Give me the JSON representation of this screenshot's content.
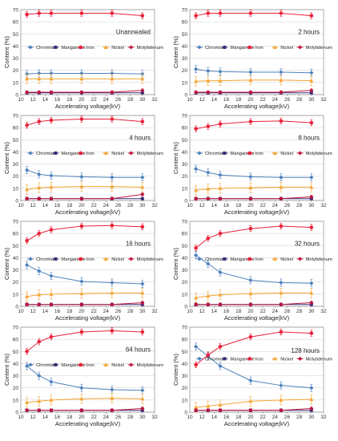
{
  "legend_labels": [
    "Chromium",
    "Manganese",
    "Iron",
    "Nickel",
    "Molybdenum"
  ],
  "series_colors": {
    "Chromium": "#4f81bd",
    "Manganese": "#3a2d7a",
    "Iron": "#e8213a",
    "Nickel": "#f4a533",
    "Molybdenum": "#c0143c"
  },
  "chart_data": [
    {
      "type": "line",
      "panel_label": "Unannealed",
      "xlabel": "Accelerating voltage(kV)",
      "ylabel": "Content (%)",
      "xlim": [
        10,
        32
      ],
      "ylim": [
        0,
        70
      ],
      "xticks": [
        10,
        12,
        14,
        16,
        18,
        20,
        22,
        24,
        26,
        28,
        30,
        32
      ],
      "yticks": [
        0,
        10,
        20,
        30,
        40,
        50,
        60,
        70
      ],
      "x": [
        11,
        13,
        15,
        20,
        25,
        30
      ],
      "series": [
        {
          "name": "Chromium",
          "values": [
            17,
            17.5,
            17.5,
            17.5,
            17.5,
            17
          ]
        },
        {
          "name": "Manganese",
          "values": [
            1.5,
            1.5,
            1.5,
            1.5,
            1.5,
            1.5
          ]
        },
        {
          "name": "Iron",
          "values": [
            66,
            67,
            67,
            67,
            67,
            65
          ]
        },
        {
          "name": "Nickel",
          "values": [
            13,
            13,
            13,
            13,
            13,
            13
          ]
        },
        {
          "name": "Molybdenum",
          "values": [
            2,
            2,
            2,
            2,
            2,
            3.5
          ]
        }
      ]
    },
    {
      "type": "line",
      "panel_label": "2 hours",
      "xlabel": "Accelerating voltage(kV)",
      "ylabel": "Content (%)",
      "xlim": [
        10,
        32
      ],
      "ylim": [
        0,
        70
      ],
      "xticks": [
        10,
        12,
        14,
        16,
        18,
        20,
        22,
        24,
        26,
        28,
        30,
        32
      ],
      "yticks": [
        0,
        10,
        20,
        30,
        40,
        50,
        60,
        70
      ],
      "x": [
        11,
        13,
        15,
        20,
        25,
        30
      ],
      "series": [
        {
          "name": "Chromium",
          "values": [
            21,
            19.5,
            19,
            18.5,
            18.5,
            18
          ]
        },
        {
          "name": "Manganese",
          "values": [
            1.5,
            1.5,
            1.5,
            1.5,
            1.5,
            1.5
          ]
        },
        {
          "name": "Iron",
          "values": [
            65,
            67,
            67,
            67,
            67,
            65
          ]
        },
        {
          "name": "Nickel",
          "values": [
            11,
            11.5,
            11.5,
            12,
            12,
            11.5
          ]
        },
        {
          "name": "Molybdenum",
          "values": [
            2,
            2,
            2,
            2,
            2,
            3.5
          ]
        }
      ]
    },
    {
      "type": "line",
      "panel_label": "4 hours",
      "xlabel": "Accelerating voltage(kV)",
      "ylabel": "Content (%)",
      "xlim": [
        10,
        32
      ],
      "ylim": [
        0,
        70
      ],
      "xticks": [
        10,
        12,
        14,
        16,
        18,
        20,
        22,
        24,
        26,
        28,
        30,
        32
      ],
      "yticks": [
        0,
        10,
        20,
        30,
        40,
        50,
        60,
        70
      ],
      "x": [
        11,
        13,
        15,
        20,
        25,
        30
      ],
      "series": [
        {
          "name": "Chromium",
          "values": [
            25,
            21.5,
            20.5,
            19.5,
            19,
            19
          ]
        },
        {
          "name": "Manganese",
          "values": [
            1.5,
            1.5,
            1.5,
            1.5,
            1.5,
            1.5
          ]
        },
        {
          "name": "Iron",
          "values": [
            62,
            65,
            66,
            67,
            67,
            65
          ]
        },
        {
          "name": "Nickel",
          "values": [
            9,
            10.5,
            11,
            11.5,
            11.5,
            11
          ]
        },
        {
          "name": "Molybdenum",
          "values": [
            1.5,
            1.5,
            1.5,
            1.5,
            1.5,
            5
          ]
        }
      ]
    },
    {
      "type": "line",
      "panel_label": "8 hours",
      "xlabel": "Accelerating voltage(kV)",
      "ylabel": "Content (%)",
      "xlim": [
        10,
        32
      ],
      "ylim": [
        0,
        70
      ],
      "xticks": [
        10,
        12,
        14,
        16,
        18,
        20,
        22,
        24,
        26,
        28,
        30,
        32
      ],
      "yticks": [
        0,
        10,
        20,
        30,
        40,
        50,
        60,
        70
      ],
      "x": [
        11,
        13,
        15,
        20,
        25,
        30
      ],
      "series": [
        {
          "name": "Chromium",
          "values": [
            26,
            23,
            21,
            19.5,
            19,
            19
          ]
        },
        {
          "name": "Manganese",
          "values": [
            1.5,
            1.5,
            1.5,
            1.5,
            1.5,
            1.5
          ]
        },
        {
          "name": "Iron",
          "values": [
            59,
            61,
            63,
            65,
            65.5,
            64
          ]
        },
        {
          "name": "Nickel",
          "values": [
            8.5,
            9.5,
            10,
            10.5,
            11,
            11
          ]
        },
        {
          "name": "Molybdenum",
          "values": [
            1.5,
            1.5,
            1.5,
            1.5,
            1.5,
            3
          ]
        }
      ]
    },
    {
      "type": "line",
      "panel_label": "16 hours",
      "xlabel": "Accelerating voltage(kV)",
      "ylabel": "Content (%)",
      "xlim": [
        10,
        32
      ],
      "ylim": [
        0,
        70
      ],
      "xticks": [
        10,
        12,
        14,
        16,
        18,
        20,
        22,
        24,
        26,
        28,
        30,
        32
      ],
      "yticks": [
        0,
        10,
        20,
        30,
        40,
        50,
        60,
        70
      ],
      "x": [
        11,
        13,
        15,
        20,
        25,
        30
      ],
      "series": [
        {
          "name": "Chromium",
          "values": [
            34,
            29,
            25,
            20.5,
            19.5,
            18.5
          ]
        },
        {
          "name": "Manganese",
          "values": [
            1.5,
            1.5,
            1.5,
            1.5,
            1.5,
            1.5
          ]
        },
        {
          "name": "Iron",
          "values": [
            54,
            60,
            63,
            66,
            66.5,
            65.5
          ]
        },
        {
          "name": "Nickel",
          "values": [
            8,
            9.5,
            10,
            10.5,
            11,
            11
          ]
        },
        {
          "name": "Molybdenum",
          "values": [
            1.5,
            1.5,
            1.5,
            1.5,
            1.5,
            3
          ]
        }
      ]
    },
    {
      "type": "line",
      "panel_label": "32 hours",
      "xlabel": "Accelerating voltage(kV)",
      "ylabel": "Content (%)",
      "xlim": [
        10,
        32
      ],
      "ylim": [
        0,
        70
      ],
      "xticks": [
        10,
        12,
        14,
        16,
        18,
        20,
        22,
        24,
        26,
        28,
        30,
        32
      ],
      "yticks": [
        0,
        10,
        20,
        30,
        40,
        50,
        60,
        70
      ],
      "x": [
        11,
        13,
        15,
        20,
        25,
        30
      ],
      "series": [
        {
          "name": "Chromium",
          "values": [
            42,
            35,
            28,
            21.5,
            19.5,
            19
          ]
        },
        {
          "name": "Manganese",
          "values": [
            1.5,
            1.5,
            1.5,
            1.5,
            1.5,
            1.5
          ]
        },
        {
          "name": "Iron",
          "values": [
            48,
            56,
            60,
            64,
            66,
            65
          ]
        },
        {
          "name": "Nickel",
          "values": [
            7,
            8.5,
            9.5,
            10.5,
            11,
            11
          ]
        },
        {
          "name": "Molybdenum",
          "values": [
            1.5,
            1.5,
            1.5,
            1.5,
            1.5,
            3
          ]
        }
      ]
    },
    {
      "type": "line",
      "panel_label": "64 hours",
      "xlabel": "Accelerating voltage(kV)",
      "ylabel": "Content (%)",
      "xlim": [
        10,
        32
      ],
      "ylim": [
        0,
        70
      ],
      "xticks": [
        10,
        12,
        14,
        16,
        18,
        20,
        22,
        24,
        26,
        28,
        30,
        32
      ],
      "yticks": [
        0,
        10,
        20,
        30,
        40,
        50,
        60,
        70
      ],
      "x": [
        11,
        13,
        15,
        20,
        25,
        30
      ],
      "series": [
        {
          "name": "Chromium",
          "values": [
            38,
            30,
            25,
            20,
            18.5,
            18
          ]
        },
        {
          "name": "Manganese",
          "values": [
            1.5,
            1.5,
            1.5,
            1.5,
            1.5,
            1.5
          ]
        },
        {
          "name": "Iron",
          "values": [
            50,
            58,
            62,
            66,
            67,
            66
          ]
        },
        {
          "name": "Nickel",
          "values": [
            8,
            9,
            10,
            11,
            11.5,
            11
          ]
        },
        {
          "name": "Molybdenum",
          "values": [
            1.5,
            1.5,
            1.5,
            1.5,
            1.5,
            3
          ]
        }
      ]
    },
    {
      "type": "line",
      "panel_label": "128 hours",
      "xlabel": "Accelerating voltage(kV)",
      "ylabel": "Content (%)",
      "xlim": [
        10,
        32
      ],
      "ylim": [
        0,
        70
      ],
      "xticks": [
        10,
        12,
        14,
        16,
        18,
        20,
        22,
        24,
        26,
        28,
        30,
        32
      ],
      "yticks": [
        0,
        10,
        20,
        30,
        40,
        50,
        60,
        70
      ],
      "x": [
        11,
        13,
        15,
        20,
        25,
        30
      ],
      "series": [
        {
          "name": "Chromium",
          "values": [
            54,
            46,
            38,
            26,
            22,
            20
          ]
        },
        {
          "name": "Manganese",
          "values": [
            1.5,
            1.5,
            1.5,
            1.5,
            1.5,
            1.5
          ]
        },
        {
          "name": "Iron",
          "values": [
            39,
            47,
            54,
            62,
            66,
            65
          ]
        },
        {
          "name": "Nickel",
          "values": [
            4,
            5,
            6,
            9,
            10,
            10.5
          ]
        },
        {
          "name": "Molybdenum",
          "values": [
            1.5,
            1.5,
            1.5,
            1.5,
            1.5,
            3
          ]
        }
      ]
    }
  ]
}
